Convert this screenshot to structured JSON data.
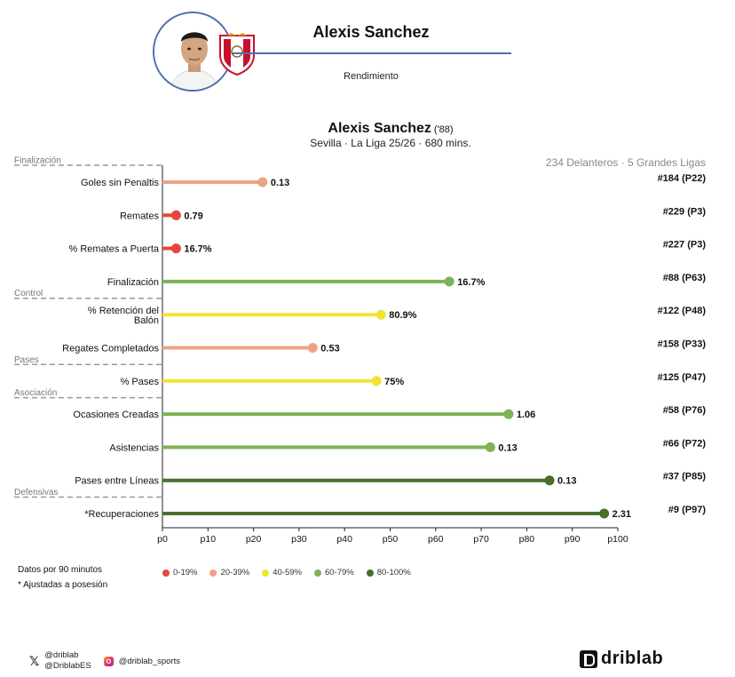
{
  "header": {
    "player_name": "Alexis Sanchez",
    "subtitle": "Rendimiento"
  },
  "chart_header": {
    "name": "Alexis Sanchez",
    "year": "('88)",
    "info": "Sevilla · La Liga 25/26 · 680 mins.",
    "sample": "234 Delanteros · 5 Grandes Ligas"
  },
  "colors": {
    "0-19%": "#e8453c",
    "20-39%": "#eea386",
    "40-59%": "#f2e235",
    "60-79%": "#7eb356",
    "80-100%": "#4a6f2c",
    "header_line": "#4f6fae"
  },
  "chart_data": {
    "type": "lollipop",
    "xlabel": "",
    "xlim": [
      0,
      100
    ],
    "xticks": [
      "p0",
      "p10",
      "p20",
      "p30",
      "p40",
      "p50",
      "p60",
      "p70",
      "p80",
      "p90",
      "p100"
    ],
    "groups": [
      {
        "label": "Finalización",
        "first_index": 0
      },
      {
        "label": "Control",
        "first_index": 4
      },
      {
        "label": "Pases",
        "first_index": 6
      },
      {
        "label": "Asociación",
        "first_index": 7
      },
      {
        "label": "Defensivas",
        "first_index": 10
      }
    ],
    "metrics": [
      {
        "label": "Goles sin Penaltis",
        "percentile": 22,
        "value": "0.13",
        "rank": "#184 (P22)",
        "band": "20-39%"
      },
      {
        "label": "Remates",
        "percentile": 3,
        "value": "0.79",
        "rank": "#229 (P3)",
        "band": "0-19%"
      },
      {
        "label": "% Remates a Puerta",
        "percentile": 3,
        "value": "16.7%",
        "rank": "#227 (P3)",
        "band": "0-19%"
      },
      {
        "label": "Finalización",
        "percentile": 63,
        "value": "16.7%",
        "rank": "#88 (P63)",
        "band": "60-79%"
      },
      {
        "label": "% Retención del Balón",
        "percentile": 48,
        "value": "80.9%",
        "rank": "#122 (P48)",
        "band": "40-59%"
      },
      {
        "label": "Regates Completados",
        "percentile": 33,
        "value": "0.53",
        "rank": "#158 (P33)",
        "band": "20-39%"
      },
      {
        "label": "% Pases",
        "percentile": 47,
        "value": "75%",
        "rank": "#125 (P47)",
        "band": "40-59%"
      },
      {
        "label": "Ocasiones Creadas",
        "percentile": 76,
        "value": "1.06",
        "rank": "#58 (P76)",
        "band": "60-79%"
      },
      {
        "label": "Asistencias",
        "percentile": 72,
        "value": "0.13",
        "rank": "#66 (P72)",
        "band": "60-79%"
      },
      {
        "label": "Pases entre Líneas",
        "percentile": 85,
        "value": "0.13",
        "rank": "#37 (P85)",
        "band": "80-100%"
      },
      {
        "label": "*Recuperaciones",
        "percentile": 97,
        "value": "2.31",
        "rank": "#9 (P97)",
        "band": "80-100%"
      }
    ]
  },
  "legend": [
    {
      "label": "0-19%",
      "color": "#e8453c"
    },
    {
      "label": "20-39%",
      "color": "#eea386"
    },
    {
      "label": "40-59%",
      "color": "#f2e235"
    },
    {
      "label": "60-79%",
      "color": "#7eb356"
    },
    {
      "label": "80-100%",
      "color": "#4a6f2c"
    }
  ],
  "footer": {
    "note_per90": "Datos por 90 minutos",
    "note_adjusted": "* Ajustadas a posesión",
    "twitter_1": "@driblab",
    "twitter_2": "@DriblabES",
    "instagram": "@driblab_sports",
    "brand": "driblab"
  }
}
